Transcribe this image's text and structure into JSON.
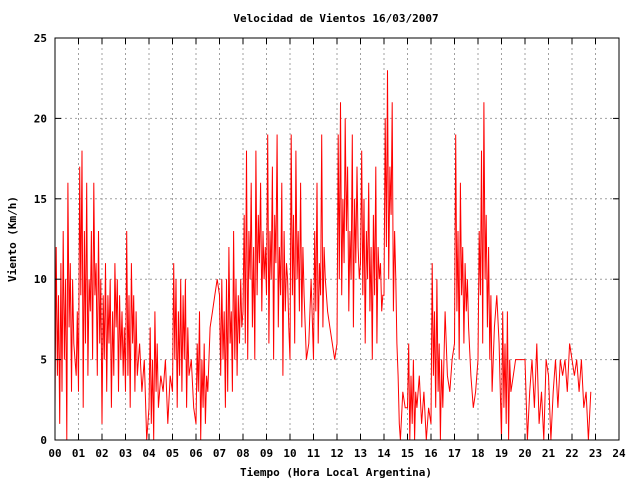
{
  "chart_data": {
    "type": "line",
    "title": "Velocidad de Vientos 16/03/2007",
    "xlabel": "Tiempo (Hora Local Argentina)",
    "ylabel": "Viento (Km/h)",
    "xlim": [
      0,
      24
    ],
    "ylim": [
      0,
      25
    ],
    "x_ticks": [
      "00",
      "01",
      "02",
      "03",
      "04",
      "05",
      "06",
      "07",
      "08",
      "09",
      "10",
      "11",
      "12",
      "13",
      "14",
      "15",
      "16",
      "17",
      "18",
      "19",
      "20",
      "21",
      "22",
      "23",
      "24"
    ],
    "y_ticks": [
      "0",
      "5",
      "10",
      "15",
      "20",
      "25"
    ],
    "grid": true,
    "series_color": "#ff0000",
    "series": [
      {
        "x": [
          0,
          0.05,
          0.1,
          0.15,
          0.2,
          0.25,
          0.3,
          0.35,
          0.4,
          0.45,
          0.5,
          0.55,
          0.6,
          0.65,
          0.7,
          0.75,
          0.8,
          0.85,
          0.9,
          0.95,
          1.0,
          1.05,
          1.1,
          1.15,
          1.2,
          1.25,
          1.3,
          1.35,
          1.4,
          1.45,
          1.5,
          1.55,
          1.6,
          1.65,
          1.7,
          1.75,
          1.8,
          1.85,
          1.9,
          1.95,
          2.0,
          2.05,
          2.1,
          2.15,
          2.2,
          2.25,
          2.3,
          2.35,
          2.4,
          2.45,
          2.5,
          2.55,
          2.6,
          2.65,
          2.7,
          2.75,
          2.8,
          2.85,
          2.9,
          2.95,
          3.0,
          3.05,
          3.1,
          3.15,
          3.2,
          3.25,
          3.3,
          3.35,
          3.4,
          3.45,
          3.5,
          3.6,
          3.7,
          3.8,
          3.9,
          4.0,
          4.05,
          4.1,
          4.15,
          4.2,
          4.25,
          4.3,
          4.35,
          4.4,
          4.5,
          4.6,
          4.7,
          4.8,
          4.9,
          5.0,
          5.05,
          5.1,
          5.15,
          5.2,
          5.25,
          5.3,
          5.35,
          5.4,
          5.45,
          5.5,
          5.55,
          5.6,
          5.65,
          5.7,
          5.8,
          5.9,
          6.0,
          6.05,
          6.1,
          6.15,
          6.2,
          6.25,
          6.3,
          6.35,
          6.4,
          6.45,
          6.5,
          6.6,
          6.7,
          6.8,
          6.9,
          7.0,
          7.05,
          7.1,
          7.15,
          7.2,
          7.25,
          7.3,
          7.35,
          7.4,
          7.45,
          7.5,
          7.55,
          7.6,
          7.65,
          7.7,
          7.75,
          7.8,
          7.85,
          7.9,
          7.95,
          8.0,
          8.05,
          8.1,
          8.15,
          8.2,
          8.25,
          8.3,
          8.35,
          8.4,
          8.45,
          8.5,
          8.55,
          8.6,
          8.65,
          8.7,
          8.75,
          8.8,
          8.85,
          8.9,
          8.95,
          9.0,
          9.05,
          9.1,
          9.15,
          9.2,
          9.25,
          9.3,
          9.35,
          9.4,
          9.45,
          9.5,
          9.55,
          9.6,
          9.65,
          9.7,
          9.75,
          9.8,
          9.85,
          9.9,
          9.95,
          10.0,
          10.05,
          10.1,
          10.15,
          10.2,
          10.25,
          10.3,
          10.35,
          10.4,
          10.45,
          10.5,
          10.55,
          10.6,
          10.7,
          10.8,
          10.9,
          11.0,
          11.05,
          11.1,
          11.15,
          11.2,
          11.25,
          11.3,
          11.35,
          11.4,
          11.45,
          11.5,
          11.6,
          11.7,
          11.8,
          11.9,
          12.0,
          12.05,
          12.1,
          12.15,
          12.2,
          12.25,
          12.3,
          12.35,
          12.4,
          12.45,
          12.5,
          12.55,
          12.6,
          12.65,
          12.7,
          12.75,
          12.8,
          12.85,
          12.9,
          12.95,
          13.0,
          13.05,
          13.1,
          13.15,
          13.2,
          13.25,
          13.3,
          13.35,
          13.4,
          13.45,
          13.5,
          13.55,
          13.6,
          13.65,
          13.7,
          13.75,
          13.8,
          13.85,
          13.9,
          13.95,
          14.0,
          14.05,
          14.1,
          14.15,
          14.2,
          14.25,
          14.3,
          14.35,
          14.4,
          14.45,
          14.5,
          14.55,
          14.6,
          14.65,
          14.7,
          14.8,
          14.9,
          15.0,
          15.05,
          15.1,
          15.15,
          15.2,
          15.25,
          15.3,
          15.35,
          15.4,
          15.5,
          15.6,
          15.7,
          15.8,
          15.9,
          16.0,
          16.05,
          16.1,
          16.15,
          16.2,
          16.25,
          16.3,
          16.35,
          16.4,
          16.45,
          16.5,
          16.6,
          16.7,
          16.8,
          16.9,
          17.0,
          17.05,
          17.1,
          17.15,
          17.2,
          17.25,
          17.3,
          17.35,
          17.4,
          17.45,
          17.5,
          17.55,
          17.6,
          17.7,
          17.8,
          17.9,
          18.0,
          18.05,
          18.1,
          18.15,
          18.2,
          18.25,
          18.3,
          18.35,
          18.4,
          18.45,
          18.5,
          18.55,
          18.6,
          18.7,
          18.8,
          18.9,
          19.0,
          19.05,
          19.1,
          19.15,
          19.2,
          19.25,
          19.3,
          19.35,
          19.4,
          19.5,
          19.6,
          19.7,
          19.8,
          19.9,
          20.0,
          20.1,
          20.2,
          20.3,
          20.4,
          20.5,
          20.6,
          20.7,
          20.8,
          20.9,
          21.0,
          21.1,
          21.2,
          21.3,
          21.4,
          21.5,
          21.6,
          21.7,
          21.8,
          21.9,
          22.0,
          22.1,
          22.2,
          22.3,
          22.4,
          22.5,
          22.6,
          22.7,
          22.8
        ],
        "y": [
          2,
          12,
          4,
          9,
          1,
          11,
          3,
          13,
          5,
          10,
          0,
          16,
          7,
          11,
          3,
          10,
          6,
          5,
          4,
          8,
          3,
          17,
          9,
          18,
          2,
          13,
          6,
          16,
          4,
          10,
          8,
          13,
          5,
          16,
          9,
          11,
          4,
          13,
          6,
          10,
          1,
          9,
          5,
          11,
          3,
          9,
          6,
          10,
          2,
          8,
          4,
          11,
          7,
          10,
          3,
          9,
          5,
          8,
          4,
          7,
          3,
          13,
          4,
          9,
          2,
          11,
          6,
          9,
          3,
          8,
          4,
          6,
          3,
          5,
          0,
          2,
          7,
          1,
          5,
          0,
          8,
          3,
          6,
          2,
          4,
          3,
          5,
          1,
          4,
          3,
          11,
          5,
          10,
          2,
          8,
          4,
          10,
          3,
          9,
          5,
          10,
          2,
          7,
          4,
          5,
          2,
          1,
          6,
          3,
          8,
          0,
          5,
          2,
          6,
          1,
          4,
          3,
          7,
          8,
          9,
          10,
          9,
          4,
          10,
          5,
          8,
          2,
          10,
          3,
          12,
          6,
          8,
          3,
          13,
          5,
          10,
          4,
          9,
          6,
          10,
          7,
          8,
          14,
          6,
          18,
          5,
          13,
          10,
          16,
          7,
          12,
          5,
          18,
          9,
          14,
          11,
          16,
          8,
          13,
          10,
          12,
          9,
          19,
          6,
          13,
          10,
          17,
          5,
          14,
          11,
          19,
          7,
          12,
          9,
          16,
          4,
          13,
          8,
          11,
          10,
          7,
          5,
          19,
          9,
          14,
          6,
          18,
          10,
          13,
          8,
          16,
          7,
          12,
          9,
          5,
          6,
          10,
          5,
          13,
          8,
          16,
          6,
          11,
          9,
          19,
          7,
          12,
          10,
          8,
          7,
          6,
          5,
          6,
          19,
          10,
          21,
          9,
          15,
          11,
          20,
          13,
          17,
          8,
          13,
          10,
          19,
          7,
          15,
          11,
          17,
          12,
          10,
          11,
          18,
          9,
          15,
          6,
          13,
          10,
          16,
          8,
          12,
          5,
          14,
          9,
          17,
          6,
          12,
          10,
          11,
          8,
          9,
          9,
          20,
          12,
          23,
          10,
          17,
          14,
          21,
          8,
          13,
          10,
          6,
          4,
          1,
          0,
          3,
          2,
          2,
          6,
          0,
          4,
          1,
          5,
          0,
          3,
          2,
          4,
          1,
          3,
          0,
          2,
          1,
          11,
          4,
          8,
          2,
          10,
          3,
          6,
          0,
          5,
          2,
          8,
          4,
          3,
          5,
          6,
          19,
          8,
          13,
          5,
          16,
          9,
          12,
          6,
          11,
          8,
          10,
          7,
          4,
          2,
          3,
          5,
          13,
          9,
          18,
          6,
          21,
          10,
          14,
          7,
          12,
          5,
          9,
          3,
          7,
          9,
          6,
          0,
          8,
          2,
          6,
          1,
          8,
          0,
          5,
          3,
          4,
          5,
          5,
          5,
          5,
          5,
          0,
          3,
          5,
          2,
          6,
          1,
          3,
          0,
          5,
          4,
          0,
          3,
          5,
          2,
          5,
          4,
          5,
          3,
          6,
          5,
          4,
          5,
          3,
          5,
          2,
          3,
          0,
          3
        ]
      }
    ]
  }
}
